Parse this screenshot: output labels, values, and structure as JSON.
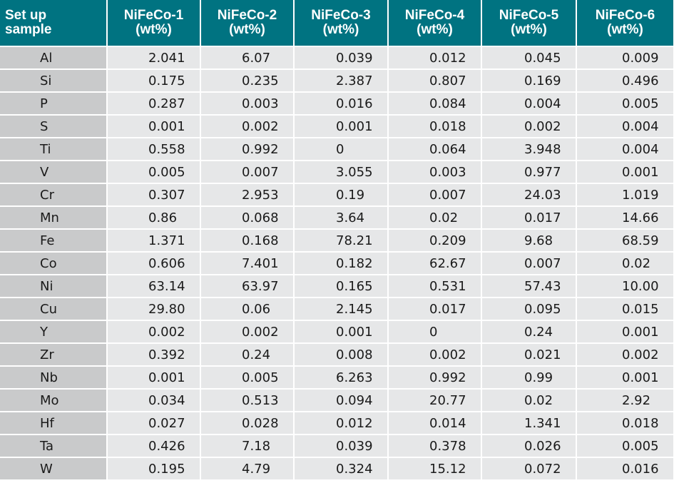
{
  "table": {
    "headers": [
      [
        "Set up",
        "sample"
      ],
      [
        "NiFeCo-1",
        "(wt%)"
      ],
      [
        "NiFeCo-2",
        "(wt%)"
      ],
      [
        "NiFeCo-3",
        "(wt%)"
      ],
      [
        "NiFeCo-4",
        "(wt%)"
      ],
      [
        "NiFeCo-5",
        "(wt%)"
      ],
      [
        "NiFeCo-6",
        "(wt%)"
      ]
    ],
    "rows": [
      [
        "Al",
        "2.041",
        "6.07",
        "0.039",
        "0.012",
        "0.045",
        "0.009"
      ],
      [
        "Si",
        "0.175",
        "0.235",
        "2.387",
        "0.807",
        "0.169",
        "0.496"
      ],
      [
        "P",
        "0.287",
        "0.003",
        "0.016",
        "0.084",
        "0.004",
        "0.005"
      ],
      [
        "S",
        "0.001",
        "0.002",
        "0.001",
        "0.018",
        "0.002",
        "0.004"
      ],
      [
        "Ti",
        "0.558",
        "0.992",
        "0",
        "0.064",
        "3.948",
        "0.004"
      ],
      [
        "V",
        "0.005",
        "0.007",
        "3.055",
        "0.003",
        "0.977",
        "0.001"
      ],
      [
        "Cr",
        "0.307",
        "2.953",
        "0.19",
        "0.007",
        "24.03",
        "1.019"
      ],
      [
        "Mn",
        "0.86",
        "0.068",
        "3.64",
        "0.02",
        "0.017",
        "14.66"
      ],
      [
        "Fe",
        "1.371",
        "0.168",
        "78.21",
        "0.209",
        "9.68",
        "68.59"
      ],
      [
        "Co",
        "0.606",
        "7.401",
        "0.182",
        "62.67",
        "0.007",
        "0.02"
      ],
      [
        "Ni",
        "63.14",
        "63.97",
        "0.165",
        "0.531",
        "57.43",
        "10.00"
      ],
      [
        "Cu",
        "29.80",
        "0.06",
        "2.145",
        "0.017",
        "0.095",
        "0.015"
      ],
      [
        "Y",
        "0.002",
        "0.002",
        "0.001",
        "0",
        "0.24",
        "0.001"
      ],
      [
        "Zr",
        "0.392",
        "0.24",
        "0.008",
        "0.002",
        "0.021",
        "0.002"
      ],
      [
        "Nb",
        "0.001",
        "0.005",
        "6.263",
        "0.992",
        "0.99",
        "0.001"
      ],
      [
        "Mo",
        "0.034",
        "0.513",
        "0.094",
        "20.77",
        "0.02",
        "2.92"
      ],
      [
        "Hf",
        "0.027",
        "0.028",
        "0.012",
        "0.014",
        "1.341",
        "0.018"
      ],
      [
        "Ta",
        "0.426",
        "7.18",
        "0.039",
        "0.378",
        "0.026",
        "0.005"
      ],
      [
        "W",
        "0.195",
        "4.79",
        "0.324",
        "15.12",
        "0.072",
        "0.016"
      ]
    ]
  }
}
